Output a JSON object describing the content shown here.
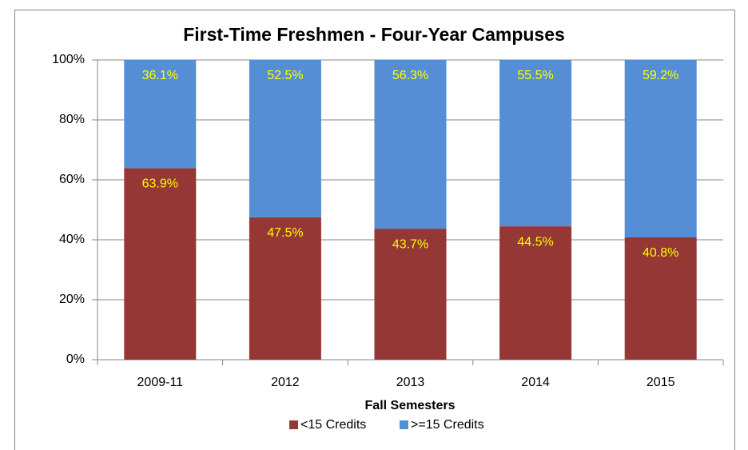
{
  "chart_data": {
    "type": "stacked_bar",
    "title": "First-Time Freshmen - Four-Year Campuses",
    "x_label": "Fall Semesters",
    "categories": [
      "2009-11",
      "2012",
      "2013",
      "2014",
      "2015"
    ],
    "series": [
      {
        "name": "<15 Credits",
        "color": "#953735",
        "values": [
          63.9,
          47.5,
          43.7,
          44.5,
          40.8
        ],
        "value_labels": [
          "63.9%",
          "47.5%",
          "43.7%",
          "44.5%",
          "40.8%"
        ]
      },
      {
        "name": ">=15 Credits",
        "color": "#558ed5",
        "values": [
          36.1,
          52.5,
          56.3,
          55.5,
          59.2
        ],
        "value_labels": [
          "36.1%",
          "52.5%",
          "56.3%",
          "55.5%",
          "59.2%"
        ]
      }
    ],
    "ylim": [
      0,
      100
    ],
    "yticks": [
      {
        "value": 0,
        "label": "0%"
      },
      {
        "value": 20,
        "label": "20%"
      },
      {
        "value": 40,
        "label": "40%"
      },
      {
        "value": 60,
        "label": "60%"
      },
      {
        "value": 80,
        "label": "80%"
      },
      {
        "value": 100,
        "label": "100%"
      }
    ],
    "grid": true,
    "legend": "bottom"
  }
}
